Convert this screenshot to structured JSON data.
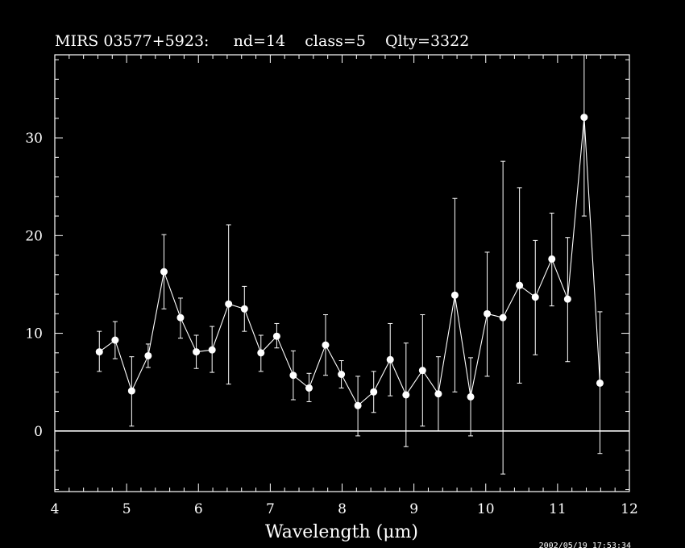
{
  "title": "MIRS 03577+5923:     nd=14    class=5    Qlty=3322",
  "timestamp": "2002/05/19  17:53:34",
  "colors": {
    "background": "#000000",
    "foreground": "#ffffff"
  },
  "chart_data": {
    "type": "scatter",
    "title": "MIRS 03577+5923:     nd=14    class=5    Qlty=3322",
    "xlabel": "Wavelength (μm)",
    "ylabel": "",
    "xlim": [
      4,
      12
    ],
    "ylim": [
      -6.2,
      38.5
    ],
    "x_ticks": [
      4,
      5,
      6,
      7,
      8,
      9,
      10,
      11,
      12
    ],
    "x_tick_labels": [
      "4",
      "5",
      "6",
      "7",
      "8",
      "9",
      "10",
      "11",
      "12"
    ],
    "y_ticks": [
      0,
      10,
      20,
      30
    ],
    "y_tick_labels": [
      "0",
      "10",
      "20",
      "30"
    ],
    "grid": false,
    "zero_line": true,
    "series": [
      {
        "connected": true,
        "marker": "circle",
        "points": [
          {
            "x": 4.62,
            "y": 8.1,
            "err_lo": 6.1,
            "err_hi": 10.2
          },
          {
            "x": 4.84,
            "y": 9.3,
            "err_lo": 7.4,
            "err_hi": 11.2
          },
          {
            "x": 5.07,
            "y": 4.1,
            "err_lo": 0.5,
            "err_hi": 7.6
          },
          {
            "x": 5.3,
            "y": 7.7,
            "err_lo": 6.5,
            "err_hi": 8.9
          },
          {
            "x": 5.52,
            "y": 16.3,
            "err_lo": 12.5,
            "err_hi": 20.1
          },
          {
            "x": 5.75,
            "y": 11.6,
            "err_lo": 9.5,
            "err_hi": 13.6
          },
          {
            "x": 5.97,
            "y": 8.1,
            "err_lo": 6.4,
            "err_hi": 9.8
          },
          {
            "x": 6.19,
            "y": 8.3,
            "err_lo": 6.0,
            "err_hi": 10.7
          },
          {
            "x": 6.42,
            "y": 13.0,
            "err_lo": 4.8,
            "err_hi": 21.1
          },
          {
            "x": 6.64,
            "y": 12.5,
            "err_lo": 10.2,
            "err_hi": 14.8
          },
          {
            "x": 6.87,
            "y": 8.0,
            "err_lo": 6.1,
            "err_hi": 9.8
          },
          {
            "x": 7.09,
            "y": 9.7,
            "err_lo": 8.5,
            "err_hi": 11.0
          },
          {
            "x": 7.32,
            "y": 5.7,
            "err_lo": 3.2,
            "err_hi": 8.2
          },
          {
            "x": 7.54,
            "y": 4.4,
            "err_lo": 3.0,
            "err_hi": 5.9
          },
          {
            "x": 7.77,
            "y": 8.8,
            "err_lo": 5.7,
            "err_hi": 11.9
          },
          {
            "x": 7.99,
            "y": 5.8,
            "err_lo": 4.4,
            "err_hi": 7.2
          },
          {
            "x": 8.22,
            "y": 2.6,
            "err_lo": -0.5,
            "err_hi": 5.6
          },
          {
            "x": 8.44,
            "y": 4.0,
            "err_lo": 1.9,
            "err_hi": 6.1
          },
          {
            "x": 8.67,
            "y": 7.3,
            "err_lo": 3.6,
            "err_hi": 11.0
          },
          {
            "x": 8.89,
            "y": 3.7,
            "err_lo": -1.6,
            "err_hi": 9.0
          },
          {
            "x": 9.12,
            "y": 6.2,
            "err_lo": 0.5,
            "err_hi": 11.9
          },
          {
            "x": 9.34,
            "y": 3.8,
            "err_lo": 0.0,
            "err_hi": 7.6
          },
          {
            "x": 9.57,
            "y": 13.9,
            "err_lo": 4.0,
            "err_hi": 23.8
          },
          {
            "x": 9.79,
            "y": 3.5,
            "err_lo": -0.5,
            "err_hi": 7.5
          },
          {
            "x": 10.02,
            "y": 12.0,
            "err_lo": 5.6,
            "err_hi": 18.3
          },
          {
            "x": 10.24,
            "y": 11.6,
            "err_lo": -4.4,
            "err_hi": 27.6
          },
          {
            "x": 10.47,
            "y": 14.9,
            "err_lo": 4.9,
            "err_hi": 24.9
          },
          {
            "x": 10.69,
            "y": 13.7,
            "err_lo": 7.8,
            "err_hi": 19.5
          },
          {
            "x": 10.92,
            "y": 17.6,
            "err_lo": 12.8,
            "err_hi": 22.3
          },
          {
            "x": 11.14,
            "y": 13.5,
            "err_lo": 7.1,
            "err_hi": 19.8
          },
          {
            "x": 11.37,
            "y": 32.1,
            "err_lo": 22.0,
            "err_hi": 38.5
          },
          {
            "x": 11.59,
            "y": 4.9,
            "err_lo": -2.3,
            "err_hi": 12.2
          }
        ]
      }
    ]
  }
}
